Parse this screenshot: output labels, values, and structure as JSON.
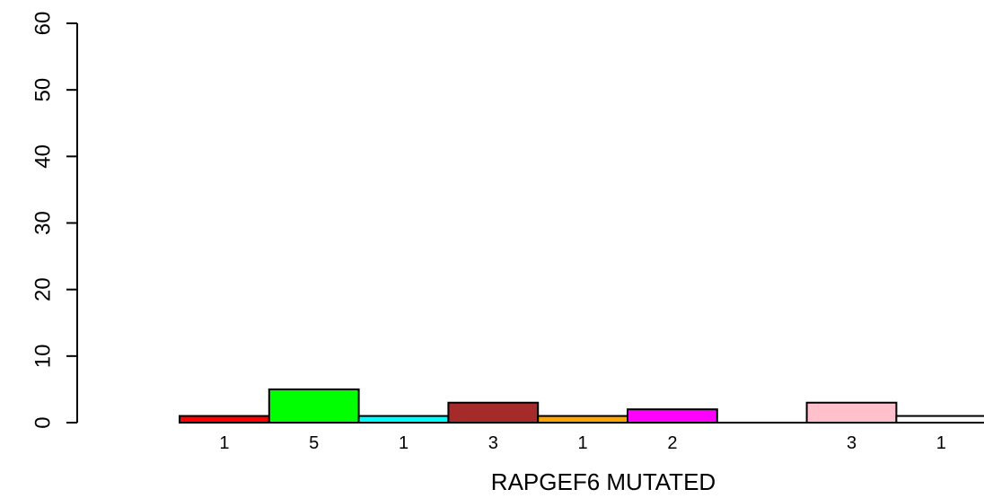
{
  "chart_data": {
    "type": "bar",
    "xlabel": "RAPGEF6 MUTATED",
    "ylabel": "",
    "ylim": [
      0,
      60
    ],
    "yticks": [
      0,
      10,
      20,
      30,
      40,
      50,
      60
    ],
    "grid": false,
    "values": [
      1,
      5,
      1,
      3,
      1,
      2,
      0,
      3,
      1
    ],
    "bar_labels": [
      "1",
      "5",
      "1",
      "3",
      "1",
      "2",
      "",
      "3",
      "1"
    ],
    "colors": [
      "#ff0000",
      "#00ff00",
      "#00ffff",
      "#a52a2a",
      "#ffa500",
      "#ff00ff",
      "#ffffff",
      "#ffc0cb",
      "#ffffff"
    ]
  }
}
